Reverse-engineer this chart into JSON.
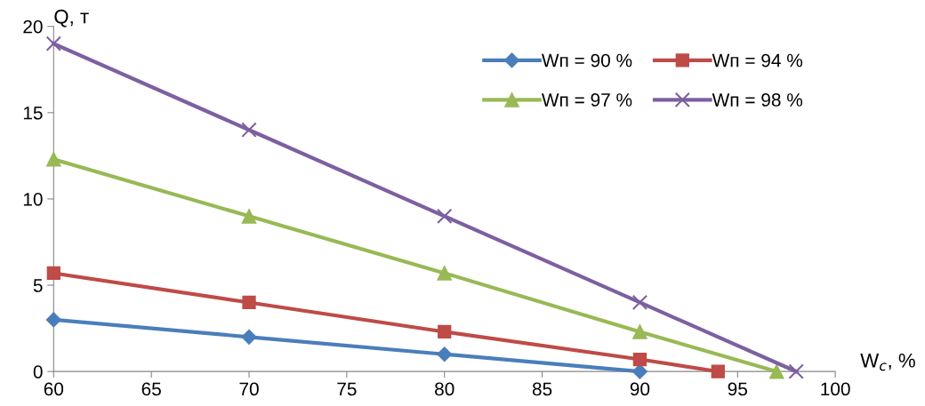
{
  "chart_data": {
    "type": "line",
    "xlabel": "W$_{с}$, %",
    "ylabel": "Q, т",
    "xlim": [
      60,
      100
    ],
    "xticks": [
      60,
      65,
      70,
      75,
      80,
      85,
      90,
      95,
      100
    ],
    "ylim": [
      0,
      20
    ],
    "yticks": [
      0,
      5,
      10,
      15,
      20
    ],
    "grid": false,
    "legend": "top right",
    "line_style": "solid",
    "series": [
      {
        "name": "Wп = 90 %",
        "color": "#4a7ebb",
        "marker": "diamond",
        "x": [
          60,
          70,
          80,
          90
        ],
        "values": [
          3,
          2,
          1,
          0
        ]
      },
      {
        "name": "Wп = 94 %",
        "color": "#be4b48",
        "marker": "square",
        "x": [
          60,
          70,
          80,
          90,
          94
        ],
        "values": [
          5.7,
          4,
          2.3,
          0.7,
          0
        ]
      },
      {
        "name": "Wп = 97 %",
        "color": "#98b954",
        "marker": "triangle",
        "x": [
          60,
          70,
          80,
          90,
          97
        ],
        "values": [
          12.3,
          9,
          5.7,
          2.3,
          0
        ]
      },
      {
        "name": "Wп = 98 %",
        "color": "#7d60a0",
        "marker": "cross",
        "x": [
          60,
          70,
          80,
          90,
          98
        ],
        "values": [
          19,
          14,
          9,
          4,
          0
        ]
      }
    ]
  }
}
